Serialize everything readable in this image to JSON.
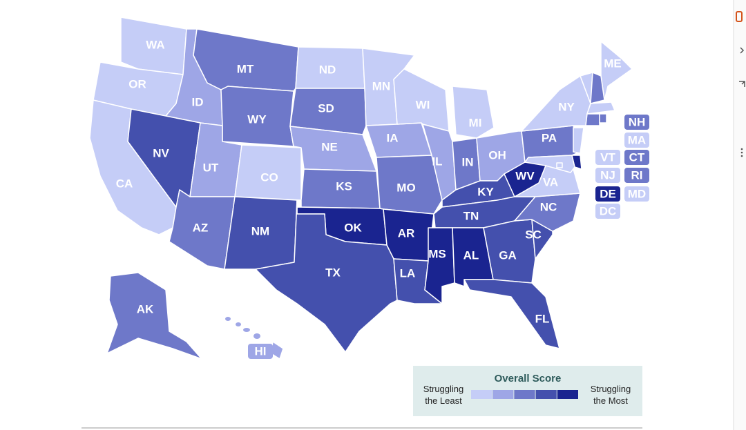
{
  "map": {
    "colors": [
      "#c5cdf7",
      "#9ea6e6",
      "#6e78c9",
      "#4450ad",
      "#1a2490"
    ],
    "states": [
      {
        "label": "WA",
        "level": 1
      },
      {
        "label": "OR",
        "level": 1
      },
      {
        "label": "CA",
        "level": 1
      },
      {
        "label": "ID",
        "level": 2
      },
      {
        "label": "NV",
        "level": 4
      },
      {
        "label": "MT",
        "level": 3
      },
      {
        "label": "WY",
        "level": 3
      },
      {
        "label": "UT",
        "level": 2
      },
      {
        "label": "AZ",
        "level": 3
      },
      {
        "label": "CO",
        "level": 1
      },
      {
        "label": "NM",
        "level": 4
      },
      {
        "label": "ND",
        "level": 1
      },
      {
        "label": "SD",
        "level": 3
      },
      {
        "label": "NE",
        "level": 2
      },
      {
        "label": "KS",
        "level": 3
      },
      {
        "label": "OK",
        "level": 5
      },
      {
        "label": "TX",
        "level": 4
      },
      {
        "label": "MN",
        "level": 1
      },
      {
        "label": "IA",
        "level": 2
      },
      {
        "label": "MO",
        "level": 3
      },
      {
        "label": "AR",
        "level": 5
      },
      {
        "label": "LA",
        "level": 4
      },
      {
        "label": "WI",
        "level": 1
      },
      {
        "label": "IL",
        "level": 2
      },
      {
        "label": "MI",
        "level": 1
      },
      {
        "label": "IN",
        "level": 3
      },
      {
        "label": "OH",
        "level": 2
      },
      {
        "label": "KY",
        "level": 4
      },
      {
        "label": "TN",
        "level": 4
      },
      {
        "label": "MS",
        "level": 5
      },
      {
        "label": "AL",
        "level": 5
      },
      {
        "label": "GA",
        "level": 4
      },
      {
        "label": "FL",
        "level": 4
      },
      {
        "label": "SC",
        "level": 4
      },
      {
        "label": "NC",
        "level": 3
      },
      {
        "label": "VA",
        "level": 1
      },
      {
        "label": "WV",
        "level": 5
      },
      {
        "label": "PA",
        "level": 3
      },
      {
        "label": "NY",
        "level": 1
      },
      {
        "label": "ME",
        "level": 1
      },
      {
        "label": "VT",
        "level": 1
      },
      {
        "label": "NH",
        "level": 3
      },
      {
        "label": "MA",
        "level": 1
      },
      {
        "label": "CT",
        "level": 3
      },
      {
        "label": "RI",
        "level": 3
      },
      {
        "label": "NJ",
        "level": 1
      },
      {
        "label": "DE",
        "level": 5
      },
      {
        "label": "MD",
        "level": 1
      },
      {
        "label": "DC",
        "level": 1
      },
      {
        "label": "AK",
        "level": 3
      },
      {
        "label": "HI",
        "level": 2
      }
    ]
  },
  "legend": {
    "title": "Overall Score",
    "low": "Struggling the Least",
    "high": "Struggling the Most"
  }
}
